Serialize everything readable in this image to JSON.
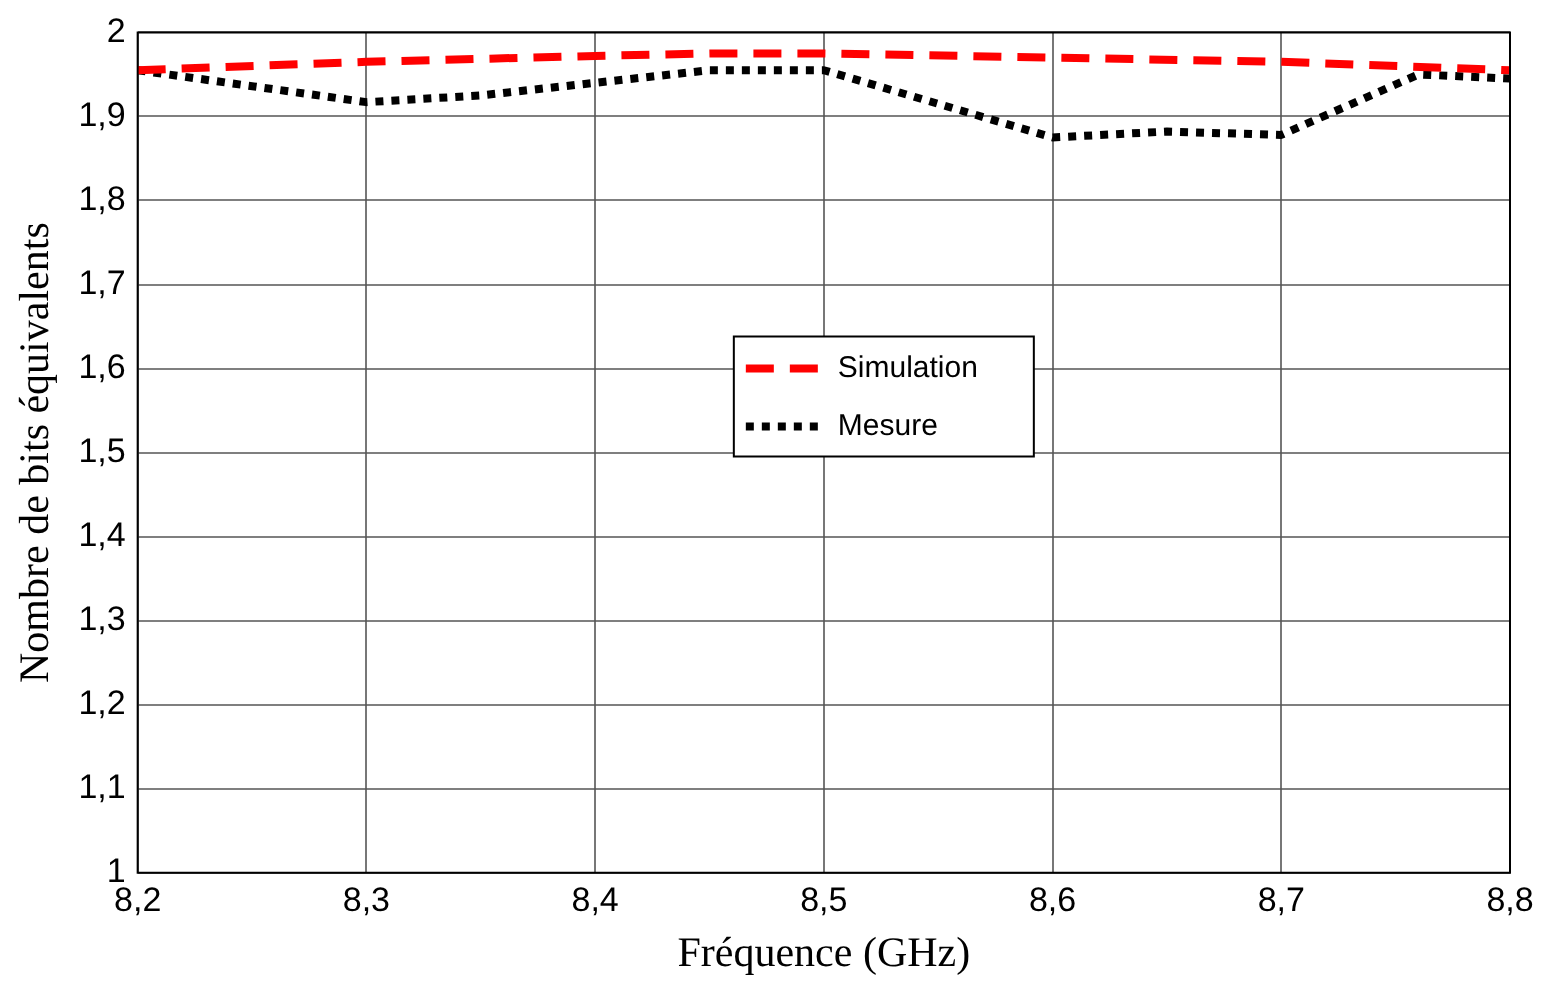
{
  "chart_data": {
    "type": "line",
    "xlabel": "Fréquence (GHz)",
    "ylabel": "Nombre de bits équivalents",
    "grid": true,
    "legend": "center",
    "marker": "none",
    "xlim": [
      8.2,
      8.8
    ],
    "ylim": [
      1,
      2
    ],
    "xticks": [
      {
        "value": 8.2,
        "label": "8,2"
      },
      {
        "value": 8.3,
        "label": "8,3"
      },
      {
        "value": 8.4,
        "label": "8,4"
      },
      {
        "value": 8.5,
        "label": "8,5"
      },
      {
        "value": 8.6,
        "label": "8,6"
      },
      {
        "value": 8.7,
        "label": "8,7"
      },
      {
        "value": 8.8,
        "label": "8,8"
      }
    ],
    "yticks": [
      1,
      {
        "value": 1.1,
        "label": "1,1"
      },
      {
        "value": 1.2,
        "label": "1,2"
      },
      {
        "value": 1.3,
        "label": "1,3"
      },
      {
        "value": 1.4,
        "label": "1,4"
      },
      {
        "value": 1.5,
        "label": "1,5"
      },
      {
        "value": 1.6,
        "label": "1,6"
      },
      {
        "value": 1.7,
        "label": "1,7"
      },
      {
        "value": 1.8,
        "label": "1,8"
      },
      {
        "value": 1.9,
        "label": "1,9"
      },
      2
    ],
    "series": [
      {
        "name": "Simulation",
        "color": "#ff0000",
        "line_style": "dashed",
        "x": [
          8.2,
          8.3,
          8.4,
          8.45,
          8.5,
          8.6,
          8.7,
          8.8
        ],
        "values": [
          1.955,
          1.965,
          1.972,
          1.975,
          1.975,
          1.97,
          1.965,
          1.955
        ]
      },
      {
        "name": "Mesure",
        "color": "#000000",
        "line_style": "dotted",
        "x": [
          8.2,
          8.3,
          8.35,
          8.4,
          8.45,
          8.5,
          8.6,
          8.65,
          8.7,
          8.76,
          8.8
        ],
        "values": [
          1.955,
          1.917,
          1.925,
          1.94,
          1.955,
          1.955,
          1.875,
          1.882,
          1.878,
          1.95,
          1.945
        ]
      }
    ]
  }
}
